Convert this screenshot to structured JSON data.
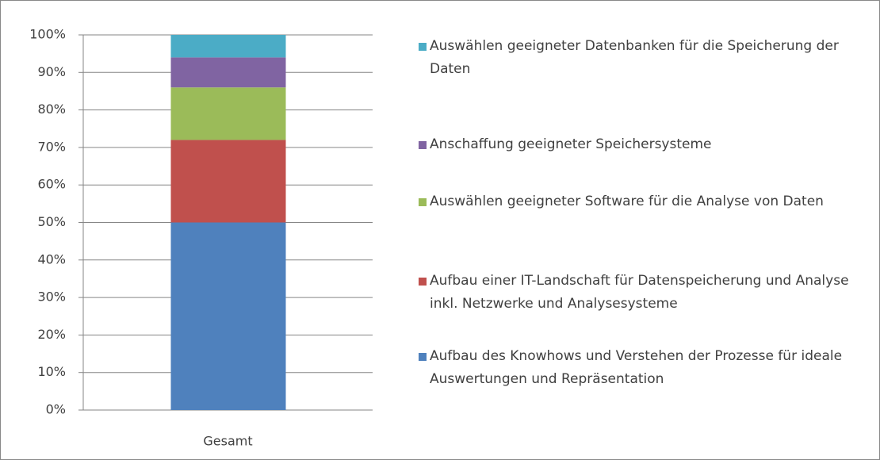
{
  "chart_data": {
    "type": "stacked_bar",
    "categories": [
      "Gesamt"
    ],
    "series": [
      {
        "name": "Aufbau des Knowhows und Verstehen der Prozesse für ideale Auswertungen und Repräsentation",
        "color": "#4f81bd",
        "values": [
          50
        ]
      },
      {
        "name": "Aufbau einer IT-Landschaft für Datenspeicherung und Analyse inkl. Netzwerke und Analysesysteme",
        "color": "#c0504d",
        "values": [
          22
        ]
      },
      {
        "name": "Auswählen geeigneter Software für die Analyse von Daten",
        "color": "#9bbb59",
        "values": [
          14
        ]
      },
      {
        "name": "Anschaffung geeigneter Speichersysteme",
        "color": "#8064a2",
        "values": [
          8
        ]
      },
      {
        "name": "Auswählen geeigneter Datenbanken für die Speicherung der Daten",
        "color": "#4bacc6",
        "values": [
          6
        ]
      }
    ],
    "ylim": [
      0,
      100
    ],
    "yticks": [
      {
        "value": 0,
        "label": "0%"
      },
      {
        "value": 10,
        "label": "10%"
      },
      {
        "value": 20,
        "label": "20%"
      },
      {
        "value": 30,
        "label": "30%"
      },
      {
        "value": 40,
        "label": "40%"
      },
      {
        "value": 50,
        "label": "50%"
      },
      {
        "value": 60,
        "label": "60%"
      },
      {
        "value": 70,
        "label": "70%"
      },
      {
        "value": 80,
        "label": "80%"
      },
      {
        "value": 90,
        "label": "90%"
      },
      {
        "value": 100,
        "label": "100%"
      }
    ],
    "grid": true,
    "legend": "right"
  }
}
